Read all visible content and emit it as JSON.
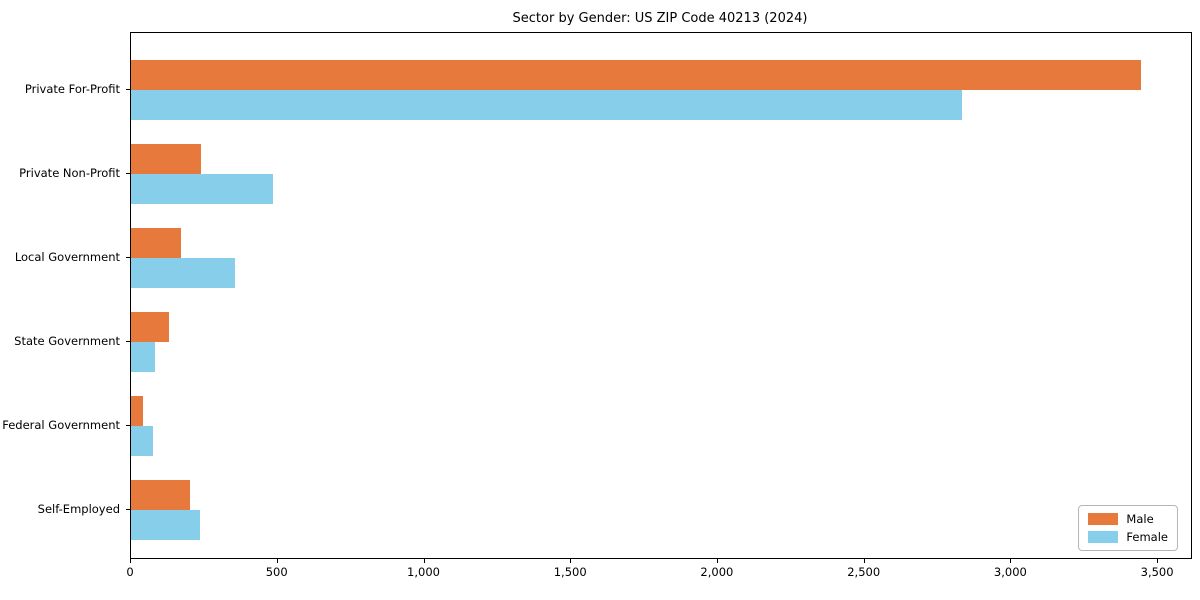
{
  "chart_data": {
    "type": "bar",
    "orientation": "horizontal",
    "title": "Sector by Gender: US ZIP Code 40213 (2024)",
    "categories": [
      "Private For-Profit",
      "Private Non-Profit",
      "Local Government",
      "State Government",
      "Federal Government",
      "Self-Employed"
    ],
    "series": [
      {
        "name": "Male",
        "color": "#e8793d",
        "values": [
          3440,
          240,
          170,
          130,
          40,
          200
        ]
      },
      {
        "name": "Female",
        "color": "#87ceeb",
        "values": [
          2830,
          485,
          355,
          80,
          75,
          235
        ]
      }
    ],
    "xlabel": "",
    "ylabel": "",
    "xlim": [
      0,
      3612
    ],
    "x_ticks": [
      0,
      500,
      1000,
      1500,
      2000,
      2500,
      3000,
      3500
    ],
    "x_tick_labels": [
      "0",
      "500",
      "1,000",
      "1,500",
      "2,000",
      "2,500",
      "3,000",
      "3,500"
    ],
    "grid": false,
    "legend_position": "lower right"
  }
}
